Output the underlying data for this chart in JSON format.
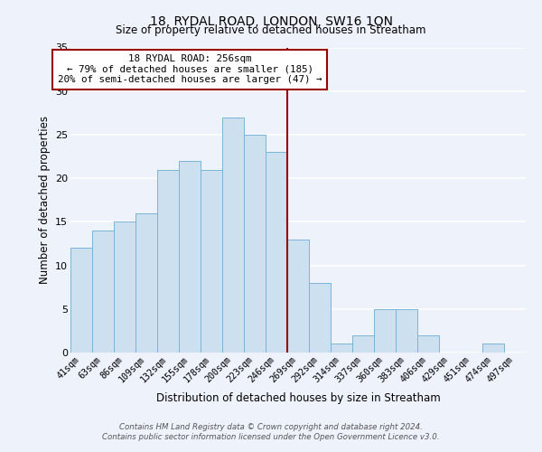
{
  "title": "18, RYDAL ROAD, LONDON, SW16 1QN",
  "subtitle": "Size of property relative to detached houses in Streatham",
  "xlabel": "Distribution of detached houses by size in Streatham",
  "ylabel": "Number of detached properties",
  "bar_labels": [
    "41sqm",
    "63sqm",
    "86sqm",
    "109sqm",
    "132sqm",
    "155sqm",
    "178sqm",
    "200sqm",
    "223sqm",
    "246sqm",
    "269sqm",
    "292sqm",
    "314sqm",
    "337sqm",
    "360sqm",
    "383sqm",
    "406sqm",
    "429sqm",
    "451sqm",
    "474sqm",
    "497sqm"
  ],
  "bar_values": [
    12,
    14,
    15,
    16,
    21,
    22,
    21,
    27,
    25,
    23,
    13,
    8,
    1,
    2,
    5,
    5,
    2,
    0,
    0,
    1,
    0
  ],
  "bar_color": "#cce0f0",
  "bar_edge_color": "#7ab4d8",
  "background_color": "#edf2fb",
  "grid_color": "#ffffff",
  "vline_x_index": 9.5,
  "vline_color": "#990000",
  "annotation_title": "18 RYDAL ROAD: 256sqm",
  "annotation_line1": "← 79% of detached houses are smaller (185)",
  "annotation_line2": "20% of semi-detached houses are larger (47) →",
  "annotation_box_color": "#ffffff",
  "annotation_box_edge_color": "#990000",
  "ylim": [
    0,
    35
  ],
  "yticks": [
    0,
    5,
    10,
    15,
    20,
    25,
    30,
    35
  ],
  "footer_line1": "Contains HM Land Registry data © Crown copyright and database right 2024.",
  "footer_line2": "Contains public sector information licensed under the Open Government Licence v3.0."
}
